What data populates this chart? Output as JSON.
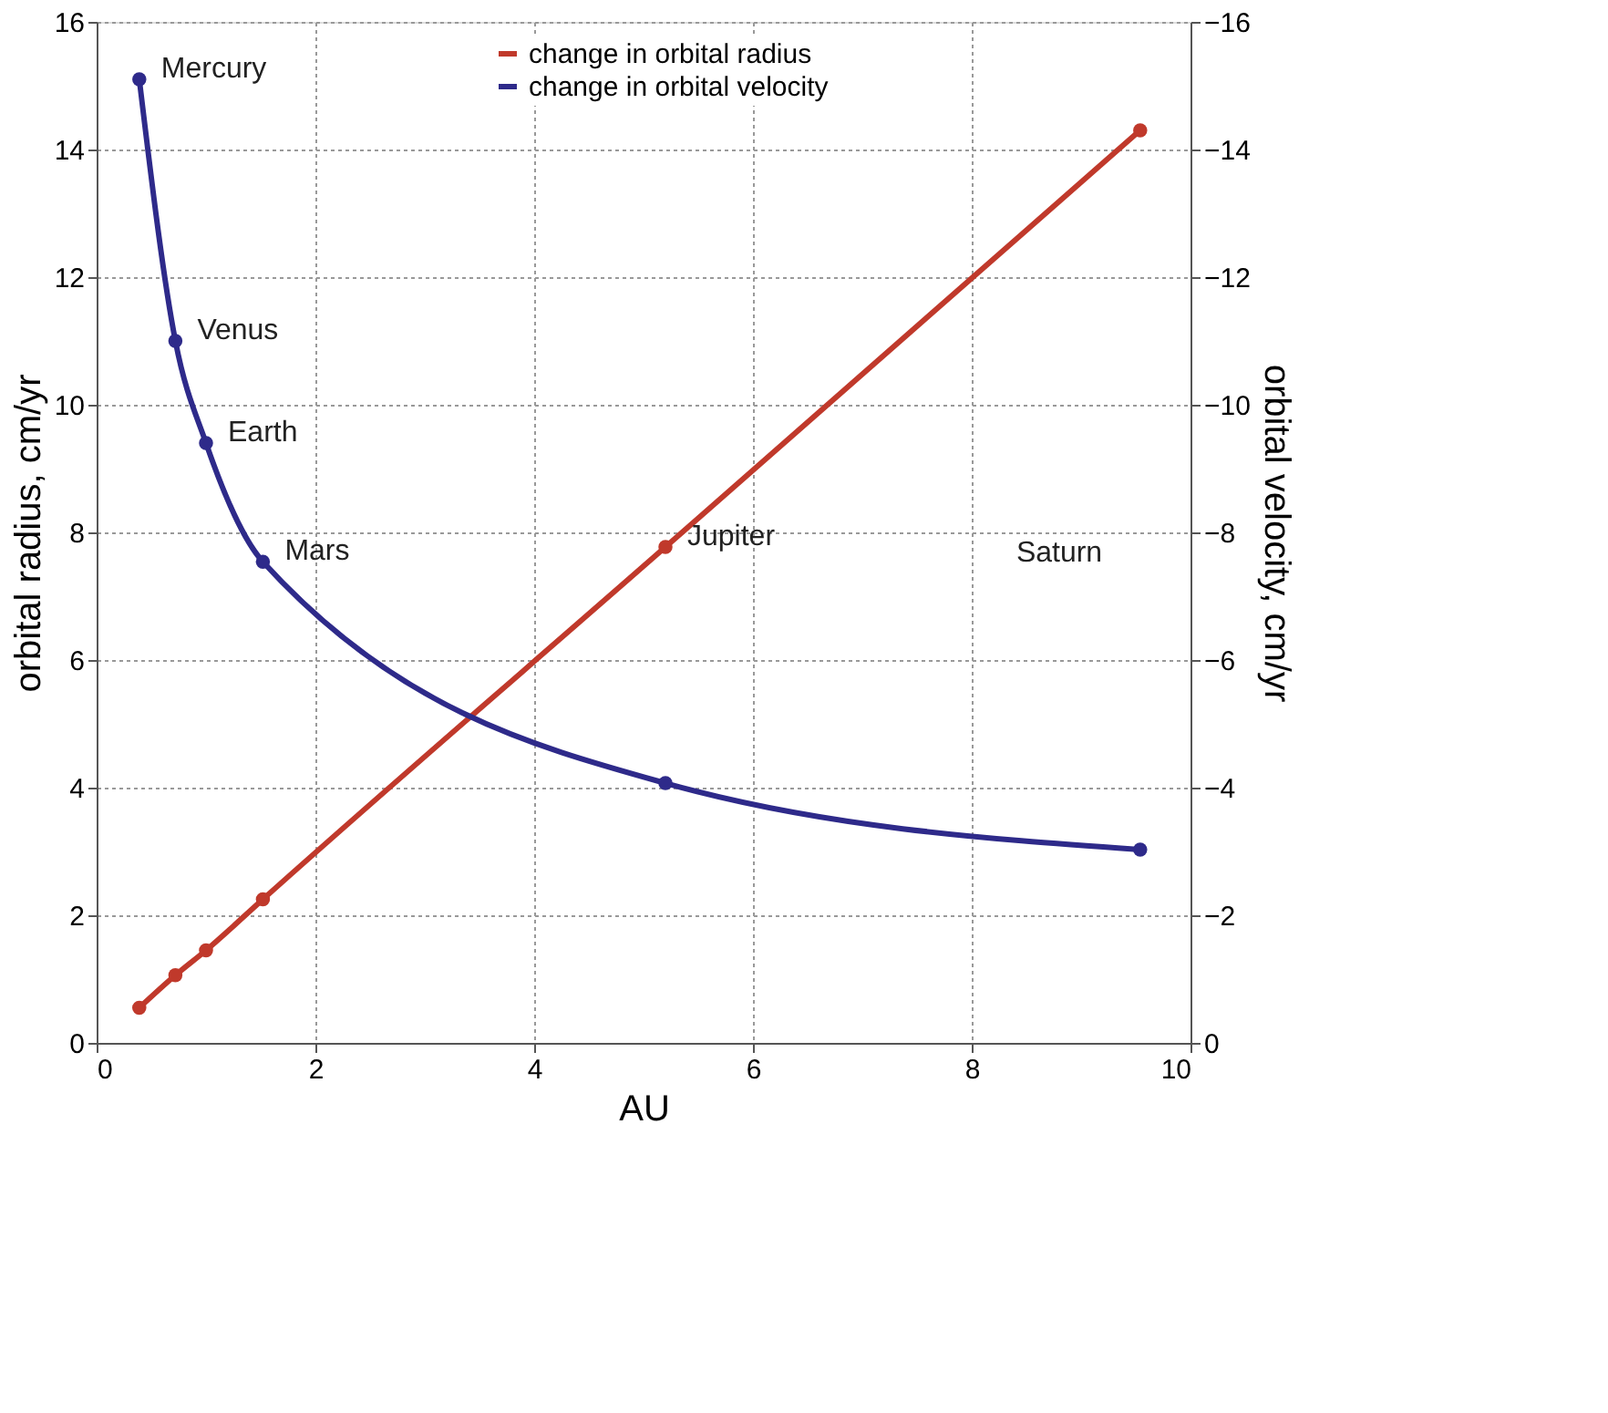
{
  "chart_data": {
    "type": "line",
    "xlabel": "AU",
    "ylabel": "orbital radius, cm/yr",
    "y2label": "orbital velocity, cm/yr",
    "x": [
      0.39,
      0.72,
      1,
      1.52,
      5.2,
      9.54
    ],
    "series": [
      {
        "name": "change in orbital radius",
        "color": "#c0392b",
        "values": [
          0.55,
          1.06,
          1.45,
          2.25,
          7.77,
          14.3
        ]
      },
      {
        "name": "change in orbital velocity",
        "color": "#2e2a8a",
        "axis": "y2",
        "values": [
          -15.1,
          -11.0,
          -9.4,
          -7.54,
          -4.07,
          -3.03
        ]
      }
    ],
    "xlim": [
      0,
      10
    ],
    "xticks": [
      0,
      2,
      4,
      6,
      8,
      10
    ],
    "ylim": [
      0,
      16
    ],
    "yticks": [
      0,
      2,
      4,
      6,
      8,
      10,
      12,
      14,
      16
    ],
    "y2lim": [
      0,
      -16
    ],
    "y2ticks": [
      0,
      -2,
      -4,
      -6,
      -8,
      -10,
      -12,
      -14,
      -16
    ],
    "annotations": [
      {
        "text": "Mercury",
        "x": 0.39,
        "y": 15.1
      },
      {
        "text": "Venus",
        "x": 0.72,
        "y": 11.0
      },
      {
        "text": "Earth",
        "x": 1,
        "y": 9.4
      },
      {
        "text": "Mars",
        "x": 1.52,
        "y": 7.54
      },
      {
        "text": "Jupiter",
        "x": 5.2,
        "y": 7.77
      },
      "Saturn"
    ],
    "grid": true,
    "legend": "top",
    "marker": "circle",
    "line_style": "solid"
  }
}
